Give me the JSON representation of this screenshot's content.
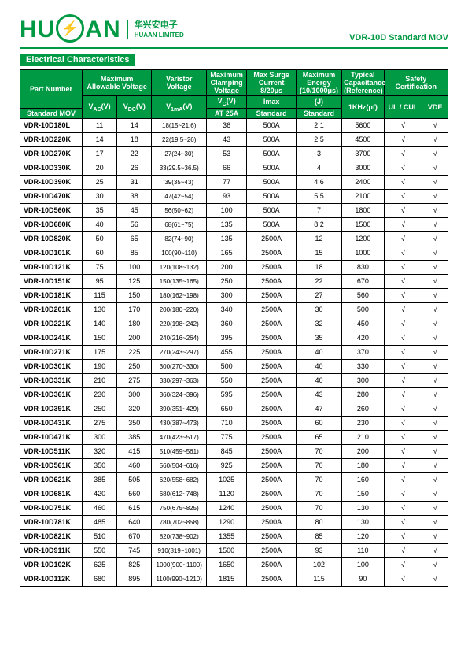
{
  "logo": {
    "main": "HUAAN",
    "bolt": "⚡",
    "cn": "华兴安电子",
    "en": "HUAAN LIMITED"
  },
  "header_right": "VDR-10D Standard MOV",
  "section_title": "Electrical Characteristics",
  "check": "√",
  "columns": {
    "part_number": "Part Number",
    "max_voltage": "Maximum Allowable Voltage",
    "varistor": "Varistor Voltage",
    "clamp": "Maximum Clamping Voltage",
    "surge": "Max Surge Current 8/20μs",
    "energy": "Maximum Energy (10/1000μs)",
    "cap": "Typical Capacitance (Reference)",
    "safety": "Safety Certification",
    "std_mov": "Standard MOV",
    "vac": "V<sub>AC</sub>(V)",
    "vdc": "V<sub>DC</sub>(V)",
    "v1ma": "V<sub>1mA</sub>(V)",
    "vc": "V<sub>C</sub>(V)",
    "at25a": "AT 25A",
    "imax": "Imax",
    "std": "Standard",
    "j": "(J)",
    "khz": "1KHz(pf)",
    "ulcul": "UL / CUL",
    "vde": "VDE"
  },
  "rows": [
    {
      "p": "VDR-10D180L",
      "vac": "11",
      "vdc": "14",
      "v1ma": "18(15~21.6)",
      "vc": "36",
      "imax": "500A",
      "j": "2.1",
      "cap": "5600",
      "ul": "√",
      "vde": "√"
    },
    {
      "p": "VDR-10D220K",
      "vac": "14",
      "vdc": "18",
      "v1ma": "22(19.5~26)",
      "vc": "43",
      "imax": "500A",
      "j": "2.5",
      "cap": "4500",
      "ul": "√",
      "vde": "√"
    },
    {
      "p": "VDR-10D270K",
      "vac": "17",
      "vdc": "22",
      "v1ma": "27(24~30)",
      "vc": "53",
      "imax": "500A",
      "j": "3",
      "cap": "3700",
      "ul": "√",
      "vde": "√"
    },
    {
      "p": "VDR-10D330K",
      "vac": "20",
      "vdc": "26",
      "v1ma": "33(29.5~36.5)",
      "vc": "66",
      "imax": "500A",
      "j": "4",
      "cap": "3000",
      "ul": "√",
      "vde": "√"
    },
    {
      "p": "VDR-10D390K",
      "vac": "25",
      "vdc": "31",
      "v1ma": "39(35~43)",
      "vc": "77",
      "imax": "500A",
      "j": "4.6",
      "cap": "2400",
      "ul": "√",
      "vde": "√"
    },
    {
      "p": "VDR-10D470K",
      "vac": "30",
      "vdc": "38",
      "v1ma": "47(42~54)",
      "vc": "93",
      "imax": "500A",
      "j": "5.5",
      "cap": "2100",
      "ul": "√",
      "vde": "√"
    },
    {
      "p": "VDR-10D560K",
      "vac": "35",
      "vdc": "45",
      "v1ma": "56(50~62)",
      "vc": "100",
      "imax": "500A",
      "j": "7",
      "cap": "1800",
      "ul": "√",
      "vde": "√"
    },
    {
      "p": "VDR-10D680K",
      "vac": "40",
      "vdc": "56",
      "v1ma": "68(61~75)",
      "vc": "135",
      "imax": "500A",
      "j": "8.2",
      "cap": "1500",
      "ul": "√",
      "vde": "√"
    },
    {
      "p": "VDR-10D820K",
      "vac": "50",
      "vdc": "65",
      "v1ma": "82(74~90)",
      "vc": "135",
      "imax": "2500A",
      "j": "12",
      "cap": "1200",
      "ul": "√",
      "vde": "√"
    },
    {
      "p": "VDR-10D101K",
      "vac": "60",
      "vdc": "85",
      "v1ma": "100(90~110)",
      "vc": "165",
      "imax": "2500A",
      "j": "15",
      "cap": "1000",
      "ul": "√",
      "vde": "√"
    },
    {
      "p": "VDR-10D121K",
      "vac": "75",
      "vdc": "100",
      "v1ma": "120(108~132)",
      "vc": "200",
      "imax": "2500A",
      "j": "18",
      "cap": "830",
      "ul": "√",
      "vde": "√"
    },
    {
      "p": "VDR-10D151K",
      "vac": "95",
      "vdc": "125",
      "v1ma": "150(135~165)",
      "vc": "250",
      "imax": "2500A",
      "j": "22",
      "cap": "670",
      "ul": "√",
      "vde": "√"
    },
    {
      "p": "VDR-10D181K",
      "vac": "115",
      "vdc": "150",
      "v1ma": "180(162~198)",
      "vc": "300",
      "imax": "2500A",
      "j": "27",
      "cap": "560",
      "ul": "√",
      "vde": "√"
    },
    {
      "p": "VDR-10D201K",
      "vac": "130",
      "vdc": "170",
      "v1ma": "200(180~220)",
      "vc": "340",
      "imax": "2500A",
      "j": "30",
      "cap": "500",
      "ul": "√",
      "vde": "√"
    },
    {
      "p": "VDR-10D221K",
      "vac": "140",
      "vdc": "180",
      "v1ma": "220(198~242)",
      "vc": "360",
      "imax": "2500A",
      "j": "32",
      "cap": "450",
      "ul": "√",
      "vde": "√"
    },
    {
      "p": "VDR-10D241K",
      "vac": "150",
      "vdc": "200",
      "v1ma": "240(216~264)",
      "vc": "395",
      "imax": "2500A",
      "j": "35",
      "cap": "420",
      "ul": "√",
      "vde": "√"
    },
    {
      "p": "VDR-10D271K",
      "vac": "175",
      "vdc": "225",
      "v1ma": "270(243~297)",
      "vc": "455",
      "imax": "2500A",
      "j": "40",
      "cap": "370",
      "ul": "√",
      "vde": "√"
    },
    {
      "p": "VDR-10D301K",
      "vac": "190",
      "vdc": "250",
      "v1ma": "300(270~330)",
      "vc": "500",
      "imax": "2500A",
      "j": "40",
      "cap": "330",
      "ul": "√",
      "vde": "√"
    },
    {
      "p": "VDR-10D331K",
      "vac": "210",
      "vdc": "275",
      "v1ma": "330(297~363)",
      "vc": "550",
      "imax": "2500A",
      "j": "40",
      "cap": "300",
      "ul": "√",
      "vde": "√"
    },
    {
      "p": "VDR-10D361K",
      "vac": "230",
      "vdc": "300",
      "v1ma": "360(324~396)",
      "vc": "595",
      "imax": "2500A",
      "j": "43",
      "cap": "280",
      "ul": "√",
      "vde": "√"
    },
    {
      "p": "VDR-10D391K",
      "vac": "250",
      "vdc": "320",
      "v1ma": "390(351~429)",
      "vc": "650",
      "imax": "2500A",
      "j": "47",
      "cap": "260",
      "ul": "√",
      "vde": "√"
    },
    {
      "p": "VDR-10D431K",
      "vac": "275",
      "vdc": "350",
      "v1ma": "430(387~473)",
      "vc": "710",
      "imax": "2500A",
      "j": "60",
      "cap": "230",
      "ul": "√",
      "vde": "√"
    },
    {
      "p": "VDR-10D471K",
      "vac": "300",
      "vdc": "385",
      "v1ma": "470(423~517)",
      "vc": "775",
      "imax": "2500A",
      "j": "65",
      "cap": "210",
      "ul": "√",
      "vde": "√"
    },
    {
      "p": "VDR-10D511K",
      "vac": "320",
      "vdc": "415",
      "v1ma": "510(459~561)",
      "vc": "845",
      "imax": "2500A",
      "j": "70",
      "cap": "200",
      "ul": "√",
      "vde": "√"
    },
    {
      "p": "VDR-10D561K",
      "vac": "350",
      "vdc": "460",
      "v1ma": "560(504~616)",
      "vc": "925",
      "imax": "2500A",
      "j": "70",
      "cap": "180",
      "ul": "√",
      "vde": "√"
    },
    {
      "p": "VDR-10D621K",
      "vac": "385",
      "vdc": "505",
      "v1ma": "620(558~682)",
      "vc": "1025",
      "imax": "2500A",
      "j": "70",
      "cap": "160",
      "ul": "√",
      "vde": "√"
    },
    {
      "p": "VDR-10D681K",
      "vac": "420",
      "vdc": "560",
      "v1ma": "680(612~748)",
      "vc": "1120",
      "imax": "2500A",
      "j": "70",
      "cap": "150",
      "ul": "√",
      "vde": "√"
    },
    {
      "p": "VDR-10D751K",
      "vac": "460",
      "vdc": "615",
      "v1ma": "750(675~825)",
      "vc": "1240",
      "imax": "2500A",
      "j": "70",
      "cap": "130",
      "ul": "√",
      "vde": "√"
    },
    {
      "p": "VDR-10D781K",
      "vac": "485",
      "vdc": "640",
      "v1ma": "780(702~858)",
      "vc": "1290",
      "imax": "2500A",
      "j": "80",
      "cap": "130",
      "ul": "√",
      "vde": "√"
    },
    {
      "p": "VDR-10D821K",
      "vac": "510",
      "vdc": "670",
      "v1ma": "820(738~902)",
      "vc": "1355",
      "imax": "2500A",
      "j": "85",
      "cap": "120",
      "ul": "√",
      "vde": "√"
    },
    {
      "p": "VDR-10D911K",
      "vac": "550",
      "vdc": "745",
      "v1ma": "910(819~1001)",
      "vc": "1500",
      "imax": "2500A",
      "j": "93",
      "cap": "110",
      "ul": "√",
      "vde": "√"
    },
    {
      "p": "VDR-10D102K",
      "vac": "625",
      "vdc": "825",
      "v1ma": "1000(900~1100)",
      "vc": "1650",
      "imax": "2500A",
      "j": "102",
      "cap": "100",
      "ul": "√",
      "vde": "√"
    },
    {
      "p": "VDR-10D112K",
      "vac": "680",
      "vdc": "895",
      "v1ma": "1100(990~1210)",
      "vc": "1815",
      "imax": "2500A",
      "j": "115",
      "cap": "90",
      "ul": "√",
      "vde": "√"
    }
  ]
}
